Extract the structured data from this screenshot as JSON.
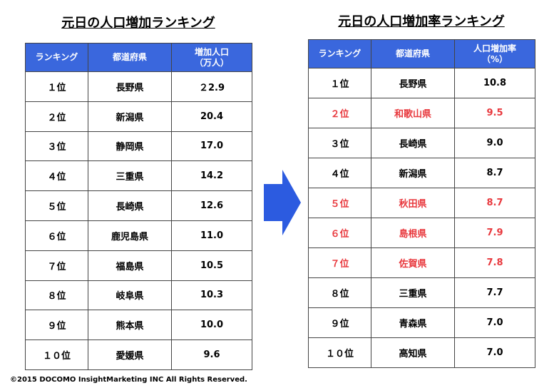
{
  "left": {
    "title": "元日の人口増加ランキング",
    "headers": [
      "ランキング",
      "都道府県",
      [
        "増加人口",
        "（万人）"
      ]
    ],
    "rows": [
      {
        "rank": "１位",
        "prefecture": "長野県",
        "value": "２2.9"
      },
      {
        "rank": "２位",
        "prefecture": "新潟県",
        "value": "20.4"
      },
      {
        "rank": "３位",
        "prefecture": "静岡県",
        "value": "17.0"
      },
      {
        "rank": "４位",
        "prefecture": "三重県",
        "value": "14.2"
      },
      {
        "rank": "５位",
        "prefecture": "長崎県",
        "value": "12.6"
      },
      {
        "rank": "６位",
        "prefecture": "鹿児島県",
        "value": "11.0"
      },
      {
        "rank": "７位",
        "prefecture": "福島県",
        "value": "10.5"
      },
      {
        "rank": "８位",
        "prefecture": "岐阜県",
        "value": "10.3"
      },
      {
        "rank": "９位",
        "prefecture": "熊本県",
        "value": "10.0"
      },
      {
        "rank": "１０位",
        "prefecture": "愛媛県",
        "value": "9.6"
      }
    ]
  },
  "right": {
    "title": "元日の人口増加率ランキング",
    "headers": [
      "ランキング",
      "都道府県",
      [
        "人口増加率",
        "（%）"
      ]
    ],
    "rows": [
      {
        "rank": "１位",
        "prefecture": "長野県",
        "value": "10.8",
        "highlight": false
      },
      {
        "rank": "２位",
        "prefecture": "和歌山県",
        "value": "9.5",
        "highlight": true
      },
      {
        "rank": "３位",
        "prefecture": "長崎県",
        "value": "9.0",
        "highlight": false
      },
      {
        "rank": "４位",
        "prefecture": "新潟県",
        "value": "8.7",
        "highlight": false
      },
      {
        "rank": "５位",
        "prefecture": "秋田県",
        "value": "8.7",
        "highlight": true
      },
      {
        "rank": "６位",
        "prefecture": "島根県",
        "value": "7.9",
        "highlight": true
      },
      {
        "rank": "７位",
        "prefecture": "佐賀県",
        "value": "7.8",
        "highlight": true
      },
      {
        "rank": "８位",
        "prefecture": "三重県",
        "value": "7.7",
        "highlight": false
      },
      {
        "rank": "９位",
        "prefecture": "青森県",
        "value": "7.0",
        "highlight": false
      },
      {
        "rank": "１０位",
        "prefecture": "高知県",
        "value": "7.0",
        "highlight": false
      }
    ]
  },
  "footer": "©2015 DOCOMO InsightMarketing INC All Rights Reserved."
}
